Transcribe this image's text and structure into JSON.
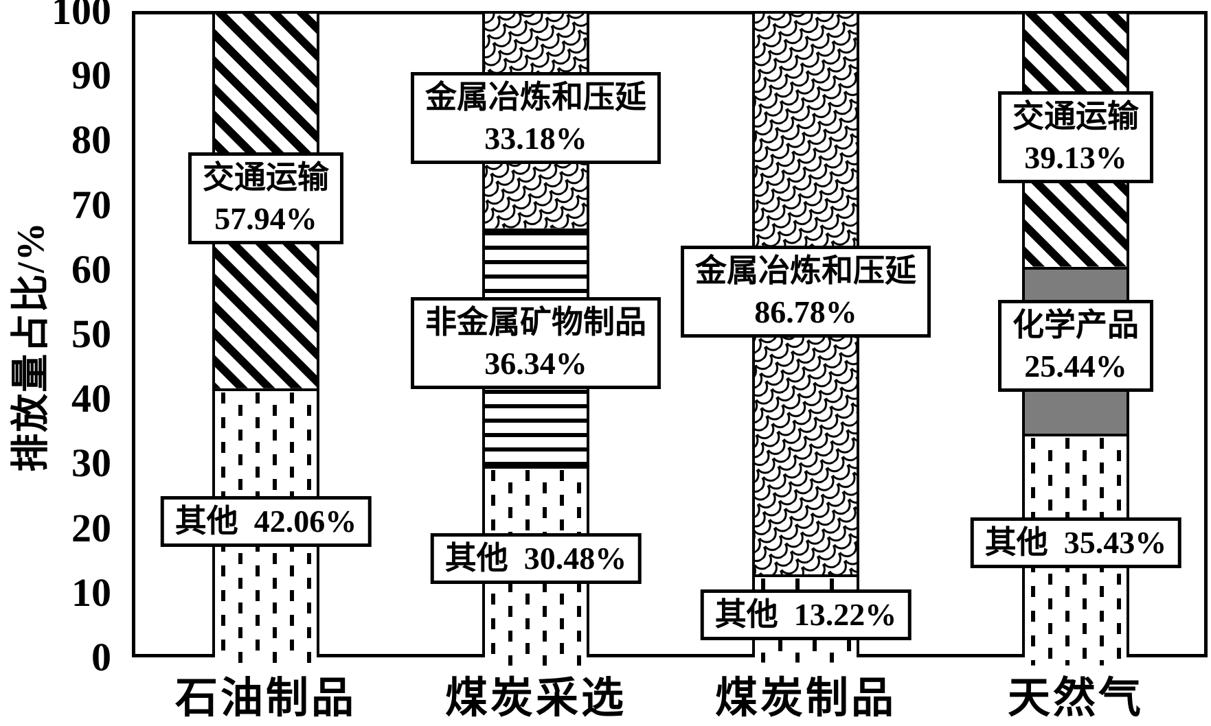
{
  "colors": {
    "ink": "#000000",
    "background": "#ffffff",
    "gray_segment": "#7d7d7d",
    "pattern_stroke": "#000000"
  },
  "chart_data": {
    "type": "bar",
    "stacked": true,
    "title": "",
    "ylabel": "排放量占比/%",
    "xlabel": "",
    "ylim": [
      0,
      100
    ],
    "yticks": [
      0,
      10,
      20,
      30,
      40,
      50,
      60,
      70,
      80,
      90,
      100
    ],
    "grid": false,
    "legend_position": "none",
    "categories": [
      "石油制品",
      "煤炭采选",
      "煤炭制品",
      "天然气"
    ],
    "series": [
      {
        "name": "其他",
        "pattern": "vertical-dashes",
        "annotation_style": "inline",
        "values": [
          42.06,
          30.48,
          13.22,
          35.43
        ]
      },
      {
        "name": "非金属矿物制品",
        "pattern": "horizontal-stripes",
        "annotation_style": "stacked",
        "values": [
          0,
          36.34,
          0,
          0
        ]
      },
      {
        "name": "化学产品",
        "pattern": "solid-gray",
        "annotation_style": "stacked",
        "values": [
          0,
          0,
          0,
          25.44
        ]
      },
      {
        "name": "金属冶炼和压延",
        "pattern": "fish-scale",
        "annotation_style": "stacked",
        "values": [
          0,
          33.18,
          86.78,
          0
        ]
      },
      {
        "name": "交通运输",
        "pattern": "diagonal-stripes",
        "annotation_style": "stacked",
        "values": [
          57.94,
          0,
          0,
          39.13
        ]
      }
    ],
    "annotations": [
      "交通运输 57.94%",
      "其他 42.06%",
      "金属冶炼和压延 33.18%",
      "非金属矿物制品 36.34%",
      "其他 30.48%",
      "金属冶炼和压延 86.78%",
      "其他 13.22%",
      "交通运输 39.13%",
      "化学产品 25.44%",
      "其他 35.43%"
    ]
  }
}
